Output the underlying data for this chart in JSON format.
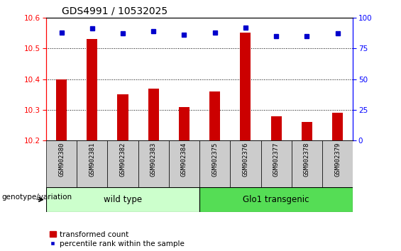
{
  "title": "GDS4991 / 10532025",
  "samples": [
    "GSM902380",
    "GSM902381",
    "GSM902382",
    "GSM902383",
    "GSM902384",
    "GSM902375",
    "GSM902376",
    "GSM902377",
    "GSM902378",
    "GSM902379"
  ],
  "transformed_counts": [
    10.4,
    10.53,
    10.35,
    10.37,
    10.31,
    10.36,
    10.55,
    10.28,
    10.26,
    10.29
  ],
  "percentile_ranks": [
    88,
    91,
    87,
    89,
    86,
    88,
    92,
    85,
    85,
    87
  ],
  "ylim_left": [
    10.2,
    10.6
  ],
  "ylim_right": [
    0,
    100
  ],
  "yticks_left": [
    10.2,
    10.3,
    10.4,
    10.5,
    10.6
  ],
  "yticks_right": [
    0,
    25,
    50,
    75,
    100
  ],
  "bar_color": "#cc0000",
  "dot_color": "#0000cc",
  "wild_type_label": "wild type",
  "transgenic_label": "Glo1 transgenic",
  "genotype_label": "genotype/variation",
  "legend_bar_label": "transformed count",
  "legend_dot_label": "percentile rank within the sample",
  "wild_type_color": "#ccffcc",
  "transgenic_color": "#55dd55",
  "sample_bg_color": "#cccccc",
  "bar_width": 0.35,
  "figsize": [
    5.65,
    3.54
  ],
  "dpi": 100
}
